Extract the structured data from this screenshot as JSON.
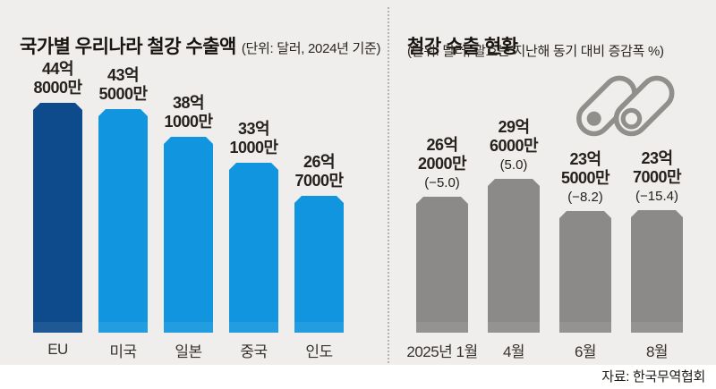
{
  "source_label": "자료: 한국무역협회",
  "colors": {
    "panel_background": "#efeeec",
    "navy_bar": "#0d4b8c",
    "blue_bar": "#1095de",
    "gray_bar": "#8b8a88",
    "divider": "#b5b2ae",
    "title_text": "#191410",
    "body_text": "#2b2621"
  },
  "icon": {
    "name": "steel-pipes-icon",
    "color": "#908f8c"
  },
  "chart_data": [
    {
      "id": "steel-exports-by-country",
      "type": "bar",
      "title": "국가별 우리나라 철강 수출액",
      "unit_note": "(단위: 달러, 2024년 기준)",
      "categories": [
        "EU",
        "미국",
        "일본",
        "중국",
        "인도"
      ],
      "values": [
        44.8,
        43.5,
        38.1,
        33.1,
        26.7
      ],
      "value_unit": "억 달러",
      "value_labels": [
        [
          "44억",
          "8000만"
        ],
        [
          "43억",
          "5000만"
        ],
        [
          "38억",
          "1000만"
        ],
        [
          "33억",
          "1000만"
        ],
        [
          "26억",
          "7000만"
        ]
      ],
      "bar_colors": [
        "#0d4b8c",
        "#1095de",
        "#1095de",
        "#1095de",
        "#1095de"
      ],
      "ylim": [
        0,
        45
      ],
      "grid": false,
      "legend": "none"
    },
    {
      "id": "steel-exports-monthly",
      "type": "bar",
      "title": "철강 수출 현황",
      "unit_note": "(단위: 달러, 괄호는 지난해 동기 대비 증감폭 %)",
      "categories": [
        "2025년 1월",
        "4월",
        "6월",
        "8월"
      ],
      "values": [
        26.2,
        29.6,
        23.5,
        23.7
      ],
      "value_unit": "억 달러",
      "yoy_change_pct": [
        -5.0,
        5.0,
        -8.2,
        -15.4
      ],
      "value_labels": [
        [
          "26억",
          "2000만"
        ],
        [
          "29억",
          "6000만"
        ],
        [
          "23억",
          "5000만"
        ],
        [
          "23억",
          "7000만"
        ]
      ],
      "change_labels": [
        "(−5.0)",
        "(5.0)",
        "(−8.2)",
        "(−15.4)"
      ],
      "bar_colors": [
        "#8b8a88",
        "#8b8a88",
        "#8b8a88",
        "#8b8a88"
      ],
      "ylim": [
        0,
        45
      ],
      "grid": false,
      "legend": "none"
    }
  ]
}
